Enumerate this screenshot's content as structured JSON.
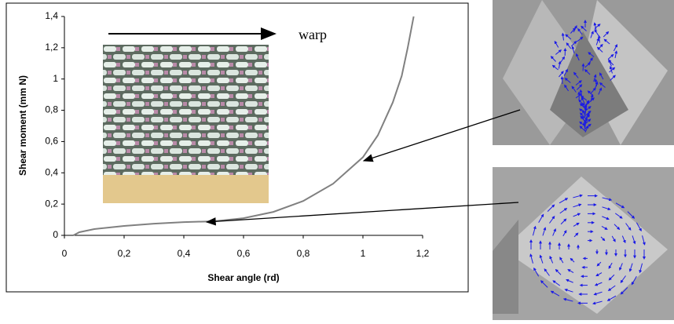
{
  "chart_data": {
    "type": "line",
    "x_label": "Shear angle (rd)",
    "y_label": "Shear moment (mm N)",
    "annotation": "warp",
    "x": [
      0.03,
      0.05,
      0.1,
      0.15,
      0.2,
      0.3,
      0.4,
      0.5,
      0.6,
      0.7,
      0.8,
      0.9,
      1.0,
      1.05,
      1.1,
      1.13,
      1.15,
      1.17
    ],
    "values": [
      0,
      0.02,
      0.04,
      0.05,
      0.06,
      0.075,
      0.085,
      0.09,
      0.11,
      0.15,
      0.22,
      0.33,
      0.5,
      0.64,
      0.85,
      1.02,
      1.2,
      1.4
    ],
    "color": "#808080",
    "xlim": [
      0,
      1.2
    ],
    "ylim": [
      0,
      1.4
    ],
    "xticks": [
      0,
      {
        "value": 0.2,
        "label": "0,2"
      },
      {
        "value": 0.4,
        "label": "0,4"
      },
      {
        "value": 0.6,
        "label": "0,6"
      },
      {
        "value": 0.8,
        "label": "0,8"
      },
      1,
      {
        "value": 1.2,
        "label": "1,2"
      }
    ],
    "yticks": [
      0,
      {
        "value": 0.2,
        "label": "0,2"
      },
      {
        "value": 0.4,
        "label": "0,4"
      },
      {
        "value": 0.6,
        "label": "0,6"
      },
      {
        "value": 0.8,
        "label": "0,8"
      },
      1,
      {
        "value": 1.2,
        "label": "1,2"
      },
      {
        "value": 1.4,
        "label": "1,4"
      }
    ]
  }
}
